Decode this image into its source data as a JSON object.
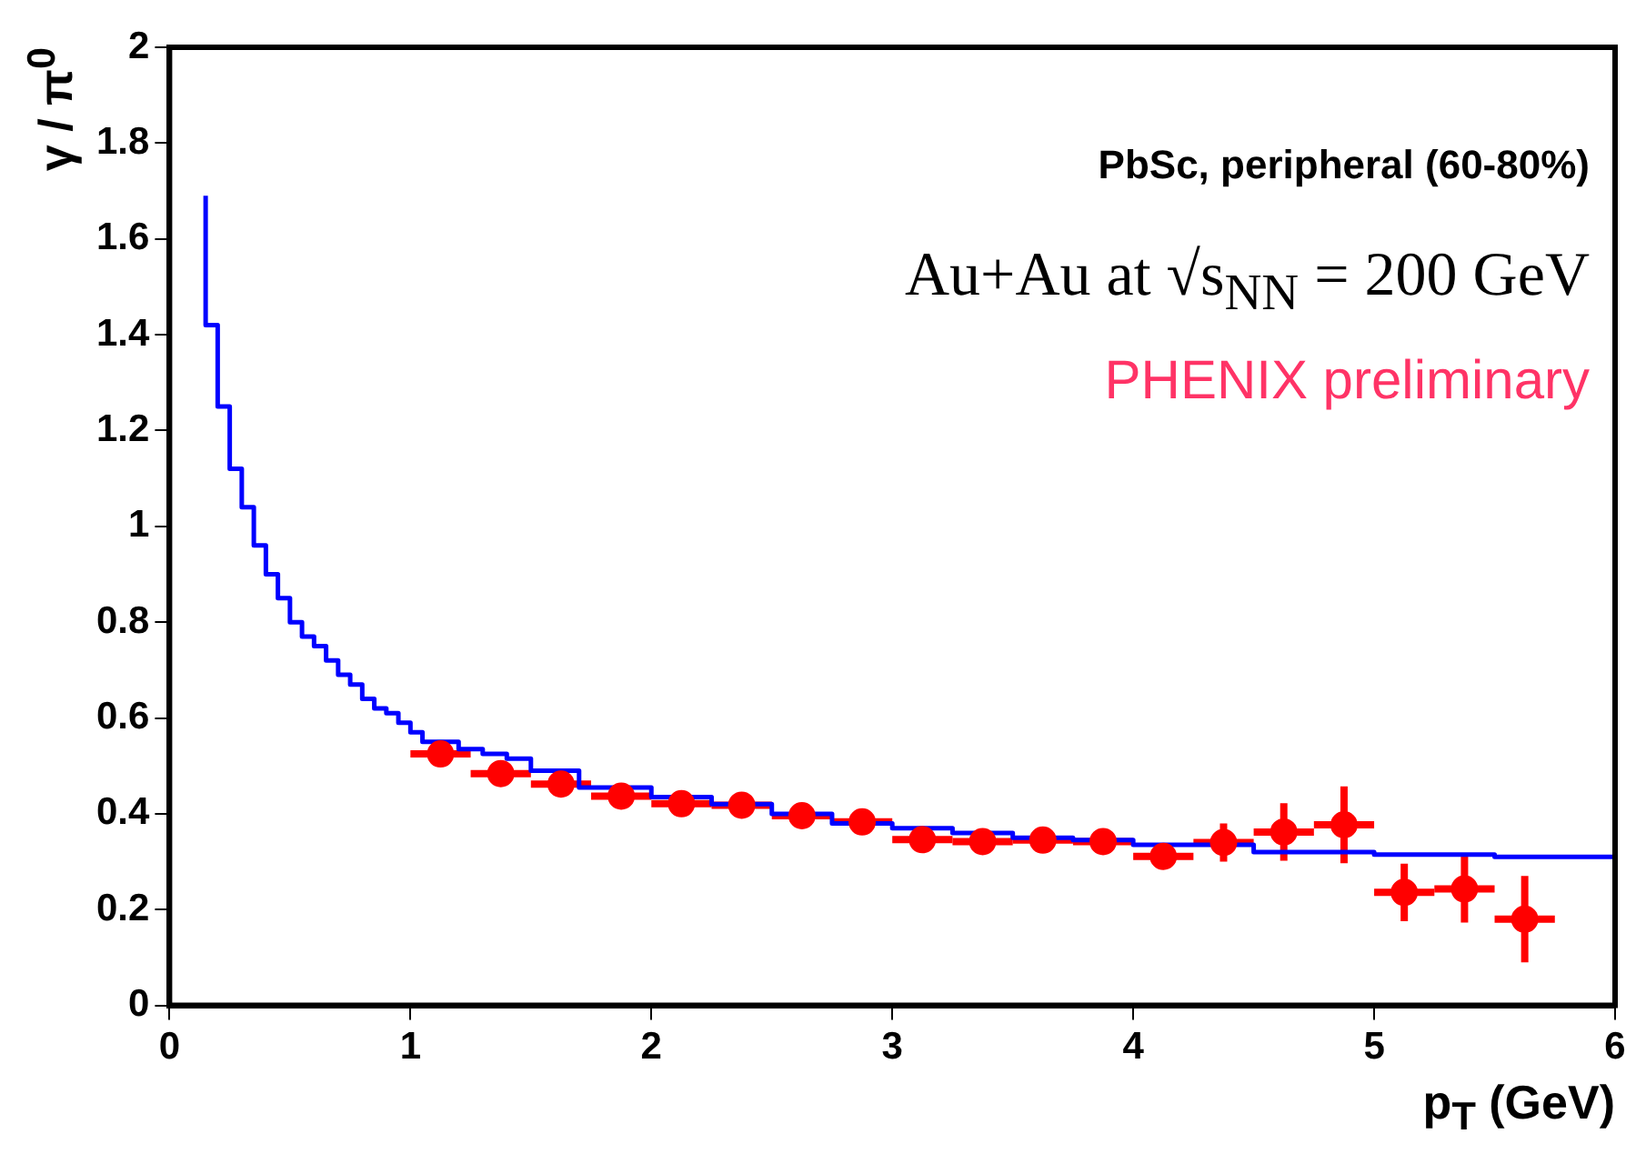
{
  "chart_data": {
    "type": "scatter",
    "xlabel": "p$_{T}$ (GeV)",
    "ylabel": "γ / π$^{0}$",
    "annotations": [
      "PbSc, peripheral (60-80%)",
      "Au+Au at √s$_{NN}$ = 200 GeV",
      "PHENIX preliminary"
    ],
    "xlim": [
      0,
      6
    ],
    "xticks": [
      0,
      1,
      2,
      3,
      4,
      5,
      6
    ],
    "ylim": [
      0,
      2
    ],
    "yticks": [
      0,
      0.2,
      0.4,
      0.6,
      0.8,
      1,
      1.2,
      1.4,
      1.6,
      1.8,
      2
    ],
    "grid": false,
    "legend": false,
    "series": [
      {
        "type": "step",
        "color": "#0000ff",
        "x": [
          0.15,
          0.2,
          0.25,
          0.3,
          0.35,
          0.4,
          0.45,
          0.5,
          0.55,
          0.6,
          0.65,
          0.7,
          0.75,
          0.8,
          0.85,
          0.9,
          0.95,
          1.0,
          1.05,
          1.15,
          1.2,
          1.3,
          1.4,
          1.5,
          1.7,
          2.0,
          2.25,
          2.5,
          2.75,
          3.0,
          3.25,
          3.5,
          3.75,
          4.0,
          4.5,
          5.0,
          5.5,
          6.0
        ],
        "values": [
          1.69,
          1.42,
          1.25,
          1.12,
          1.04,
          0.96,
          0.9,
          0.85,
          0.8,
          0.77,
          0.75,
          0.72,
          0.69,
          0.67,
          0.64,
          0.62,
          0.61,
          0.59,
          0.57,
          0.55,
          0.55,
          0.535,
          0.525,
          0.515,
          0.49,
          0.455,
          0.435,
          0.42,
          0.4,
          0.38,
          0.37,
          0.36,
          0.35,
          0.345,
          0.335,
          0.32,
          0.315,
          0.31
        ]
      },
      {
        "marker": "circle",
        "color": "#ff0000",
        "x": [
          1.125,
          1.375,
          1.625,
          1.875,
          2.125,
          2.375,
          2.625,
          2.875,
          3.125,
          3.375,
          3.625,
          3.875,
          4.125,
          4.375,
          4.625,
          4.875,
          5.125,
          5.375,
          5.625
        ],
        "values": [
          0.525,
          0.484,
          0.462,
          0.437,
          0.421,
          0.418,
          0.396,
          0.383,
          0.346,
          0.342,
          0.345,
          0.342,
          0.311,
          0.34,
          0.362,
          0.377,
          0.236,
          0.243,
          0.18
        ],
        "errors": [
          0.02,
          0.02,
          0.02,
          0.02,
          0.02,
          0.02,
          0.02,
          0.02,
          0.02,
          0.02,
          0.02,
          0.02,
          0.02,
          0.04,
          0.06,
          0.08,
          0.06,
          0.07,
          0.09
        ],
        "xerrors": [
          0.125,
          0.125,
          0.125,
          0.125,
          0.125,
          0.125,
          0.125,
          0.125,
          0.125,
          0.125,
          0.125,
          0.125,
          0.125,
          0.125,
          0.125,
          0.125,
          0.125,
          0.125,
          0.125
        ]
      }
    ]
  }
}
